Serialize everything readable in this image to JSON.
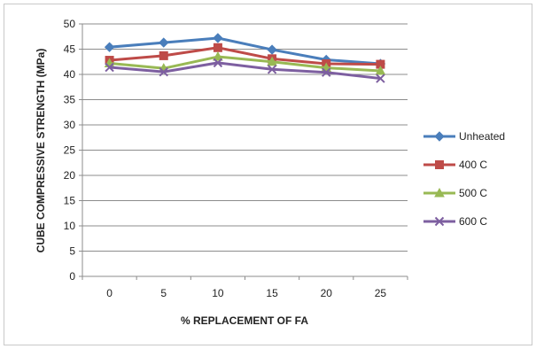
{
  "chart_data": {
    "type": "line",
    "title": "",
    "xlabel": "% REPLACEMENT OF FA",
    "ylabel": "CUBE COMPRESSIVE STRENGTH (MPa)",
    "categories": [
      "0",
      "5",
      "10",
      "15",
      "20",
      "25"
    ],
    "ylim": [
      0,
      50
    ],
    "yticks": [
      0,
      5,
      10,
      15,
      20,
      25,
      30,
      35,
      40,
      45,
      50
    ],
    "grid": true,
    "legend_position": "right",
    "series": [
      {
        "name": "Unheated",
        "values": [
          45.4,
          46.3,
          47.2,
          44.9,
          42.9,
          42.1
        ],
        "color": "#4a7ebb",
        "marker": "diamond"
      },
      {
        "name": "400 C",
        "values": [
          42.8,
          43.7,
          45.3,
          43.1,
          42.1,
          42.0
        ],
        "color": "#be4b48",
        "marker": "square"
      },
      {
        "name": "500 C",
        "values": [
          42.2,
          41.2,
          43.5,
          42.5,
          41.3,
          40.7
        ],
        "color": "#98b954",
        "marker": "triangle"
      },
      {
        "name": "600 C",
        "values": [
          41.4,
          40.5,
          42.3,
          41.0,
          40.4,
          39.2
        ],
        "color": "#7d5fa0",
        "marker": "x"
      }
    ]
  }
}
